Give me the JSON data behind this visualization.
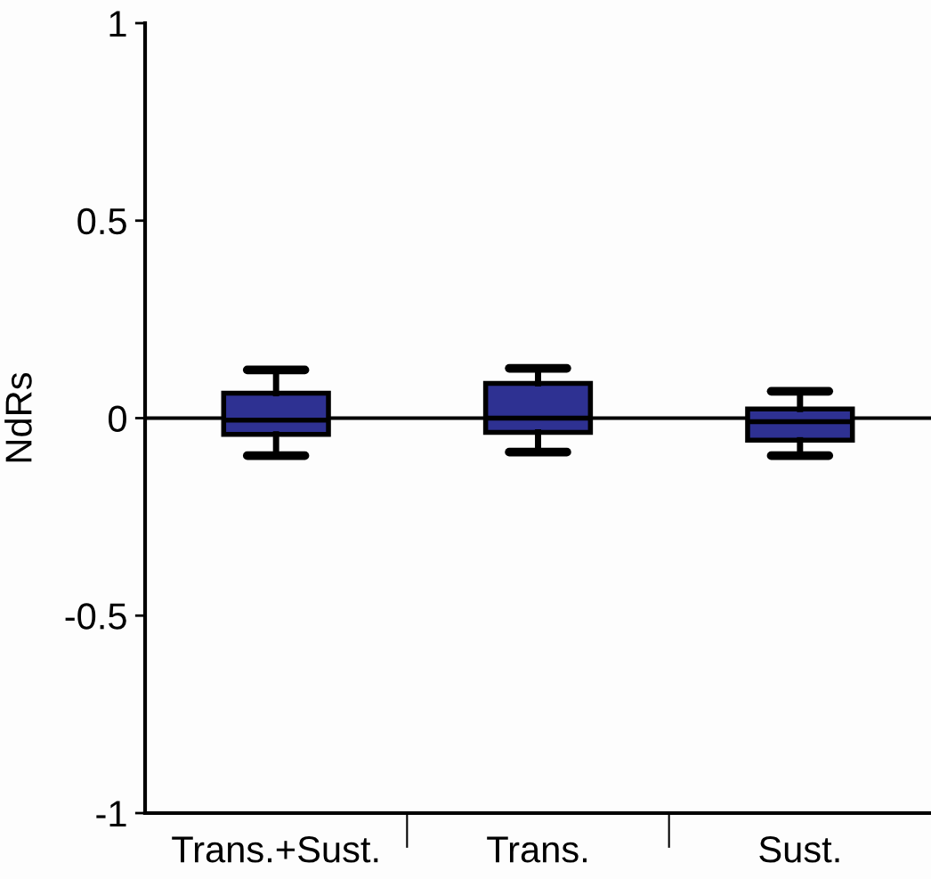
{
  "chart_data": {
    "type": "box",
    "ylabel": "NdRs",
    "categories": [
      "Trans.+Sust.",
      "Trans.",
      "Sust."
    ],
    "boxes": [
      {
        "low": -0.095,
        "q1": -0.041,
        "median": -0.005,
        "q3": 0.063,
        "high": 0.122
      },
      {
        "low": -0.086,
        "q1": -0.036,
        "median": 0.0,
        "q3": 0.088,
        "high": 0.126
      },
      {
        "low": -0.095,
        "q1": -0.056,
        "median": -0.009,
        "q3": 0.023,
        "high": 0.068
      }
    ],
    "color": "#2e3192",
    "ylim": [
      -1,
      1
    ],
    "yticks": [
      -1,
      -0.5,
      0,
      0.5,
      1
    ],
    "grid": false,
    "legend": false,
    "ref_lines": [
      {
        "axis": "y",
        "value": 0,
        "color": "#000000"
      }
    ]
  }
}
